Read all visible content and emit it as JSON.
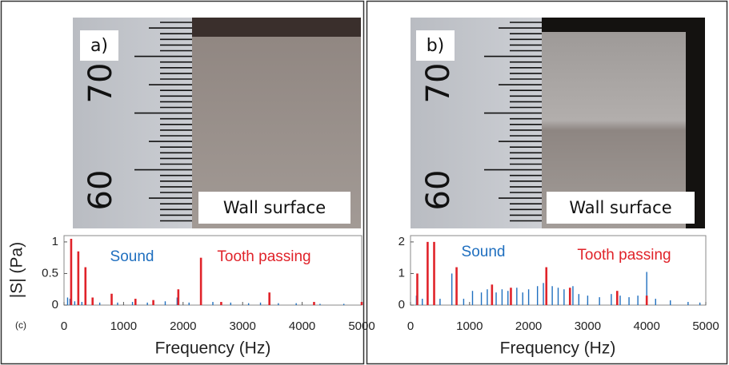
{
  "photos": [
    {
      "label": "a)",
      "caption": "Wall surface",
      "scale_labels": [
        "70",
        "60"
      ]
    },
    {
      "label": "b)",
      "caption": "Wall surface",
      "scale_labels": [
        "70",
        "60"
      ]
    }
  ],
  "chart_data": [
    {
      "type": "stem",
      "ylabel": "|S| (Pa)",
      "xlabel": "Frequency (Hz)",
      "annotations": [
        "(c)"
      ],
      "xlim": [
        0,
        5000
      ],
      "xticks": [
        0,
        1000,
        2000,
        3000,
        4000,
        5000
      ],
      "ylim": [
        0,
        1.1
      ],
      "yticks": [
        0,
        0.5,
        1
      ],
      "series": [
        {
          "name": "Sound",
          "color": "#1f6fbf",
          "x": [
            60,
            100,
            180,
            300,
            600,
            900,
            1150,
            1400,
            1700,
            1900,
            2100,
            2500,
            2800,
            3100,
            3300,
            3600,
            3900,
            4300,
            4700
          ],
          "values": [
            0.12,
            0.1,
            0.06,
            0.05,
            0.04,
            0.04,
            0.05,
            0.04,
            0.06,
            0.12,
            0.04,
            0.05,
            0.04,
            0.03,
            0.04,
            0.03,
            0.03,
            0.02,
            0.02
          ]
        },
        {
          "name": "Tooth passing",
          "color": "#e0232a",
          "x": [
            120,
            240,
            360,
            480,
            800,
            1200,
            1500,
            1920,
            2300,
            2640,
            3450,
            4200,
            5000
          ],
          "values": [
            1.05,
            0.85,
            0.6,
            0.12,
            0.18,
            0.1,
            0.08,
            0.25,
            0.75,
            0.05,
            0.2,
            0.05,
            0.05
          ]
        }
      ]
    },
    {
      "type": "stem",
      "xlabel": "Frequency (Hz)",
      "xlim": [
        0,
        5000
      ],
      "xticks": [
        0,
        1000,
        2000,
        3000,
        4000,
        5000
      ],
      "ylim": [
        0,
        2.2
      ],
      "yticks": [
        0,
        1,
        2
      ],
      "series": [
        {
          "name": "Sound",
          "color": "#1f6fbf",
          "x": [
            100,
            200,
            500,
            700,
            900,
            1050,
            1200,
            1300,
            1450,
            1550,
            1650,
            1800,
            1900,
            2000,
            2150,
            2250,
            2400,
            2500,
            2600,
            2750,
            2850,
            3000,
            3200,
            3400,
            3550,
            3700,
            3850,
            4000,
            4150,
            4400,
            4700,
            4900
          ],
          "values": [
            0.3,
            0.2,
            0.2,
            1.0,
            0.2,
            0.45,
            0.4,
            0.5,
            0.4,
            0.5,
            0.45,
            0.55,
            0.4,
            0.5,
            0.6,
            0.7,
            0.6,
            0.55,
            0.5,
            0.6,
            0.35,
            0.3,
            0.25,
            0.35,
            0.3,
            0.25,
            0.3,
            1.05,
            0.2,
            0.15,
            0.1,
            0.08
          ]
        },
        {
          "name": "Tooth passing",
          "color": "#e0232a",
          "x": [
            115,
            290,
            400,
            780,
            1380,
            1700,
            2300,
            2700,
            3500,
            4000
          ],
          "values": [
            1.0,
            2.0,
            2.0,
            1.2,
            0.65,
            0.55,
            1.2,
            0.55,
            0.45,
            0.3
          ]
        }
      ]
    }
  ]
}
